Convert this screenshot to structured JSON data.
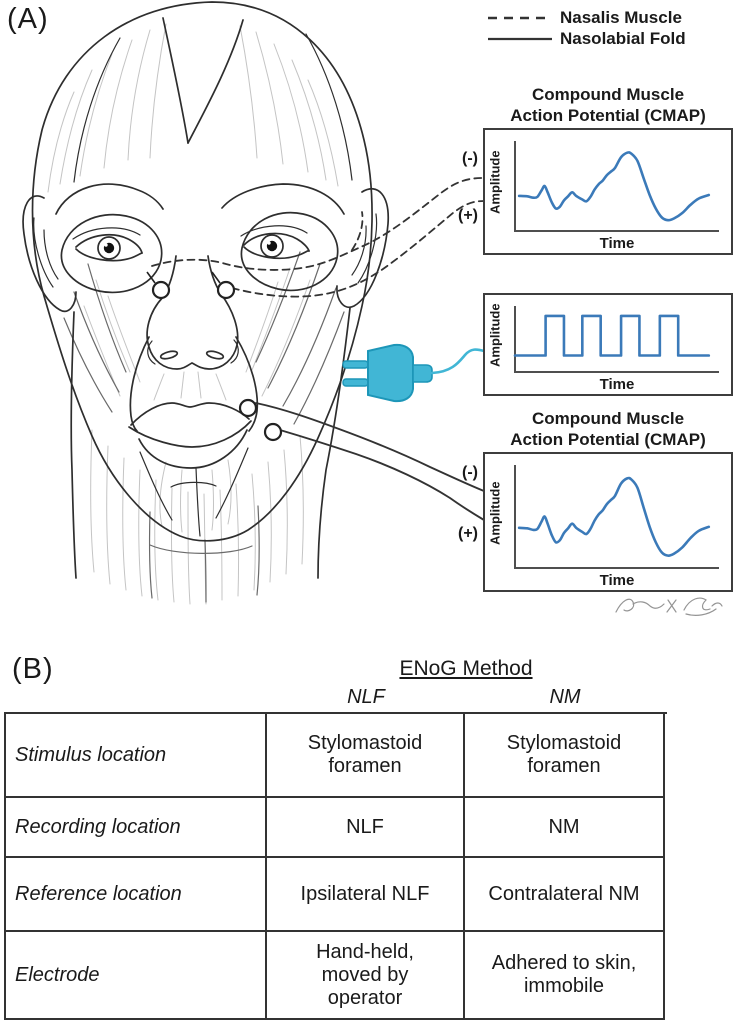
{
  "panel_a": {
    "label": "(A)",
    "legend": {
      "items": [
        {
          "line_style": "dashed",
          "label": "Nasalis Muscle"
        },
        {
          "line_style": "solid",
          "label": "Nasolabial Fold"
        }
      ]
    },
    "leads": {
      "nasalis_to_cmap": {
        "neg": "(-)",
        "pos": "(+)"
      },
      "nasolabial_to_cmap": {
        "neg": "(-)",
        "pos": "(+)"
      }
    }
  },
  "panel_b": {
    "label": "(B)",
    "table": {
      "title": "ENoG Method",
      "columns": [
        "NLF",
        "NM"
      ],
      "rows": [
        {
          "label": "Stimulus location",
          "nlf": "Stylomastoid\nforamen",
          "nm": "Stylomastoid\nforamen"
        },
        {
          "label": "Recording location",
          "nlf": "NLF",
          "nm": "NM"
        },
        {
          "label": "Reference location",
          "nlf": "Ipsilateral NLF",
          "nm": "Contralateral NM"
        },
        {
          "label": "Electrode",
          "nlf": "Hand-held,\nmoved by\noperator",
          "nm": "Adhered to skin,\nimmobile"
        }
      ]
    }
  },
  "chart_data": [
    {
      "type": "line",
      "id": "cmap_top",
      "smooth": true,
      "title": "Compound Muscle\nAction Potential (CMAP)",
      "xlabel": "Time",
      "ylabel": "Amplitude",
      "axis_ticks": "none",
      "grid": false,
      "color": "#3b7ab9",
      "points": [
        [
          2,
          61
        ],
        [
          6,
          61.5
        ],
        [
          9,
          63
        ],
        [
          11,
          62
        ],
        [
          13,
          55
        ],
        [
          14.5,
          50
        ],
        [
          16,
          57
        ],
        [
          18,
          68
        ],
        [
          20,
          75
        ],
        [
          22,
          73
        ],
        [
          24,
          66
        ],
        [
          26,
          61.5
        ],
        [
          28,
          57
        ],
        [
          30,
          61
        ],
        [
          33,
          65
        ],
        [
          35,
          67
        ],
        [
          37,
          62
        ],
        [
          39,
          54
        ],
        [
          41,
          48
        ],
        [
          43,
          44
        ],
        [
          45,
          38
        ],
        [
          47,
          34
        ],
        [
          49,
          30
        ],
        [
          52,
          18
        ],
        [
          55,
          13
        ],
        [
          57,
          14
        ],
        [
          60,
          22
        ],
        [
          63,
          41
        ],
        [
          66,
          60
        ],
        [
          69,
          75
        ],
        [
          72,
          85
        ],
        [
          75,
          88
        ],
        [
          78,
          86
        ],
        [
          82,
          80
        ],
        [
          86,
          71
        ],
        [
          90,
          64
        ],
        [
          95,
          60
        ]
      ]
    },
    {
      "type": "line",
      "id": "stimulus_train",
      "smooth": false,
      "title": "",
      "xlabel": "Time",
      "ylabel": "Amplitude",
      "axis_ticks": "none",
      "grid": false,
      "color": "#3b7ab9",
      "points": [
        [
          0,
          75
        ],
        [
          15,
          75
        ],
        [
          15,
          15
        ],
        [
          24,
          15
        ],
        [
          24,
          75
        ],
        [
          33,
          75
        ],
        [
          33,
          15
        ],
        [
          42,
          15
        ],
        [
          42,
          75
        ],
        [
          52,
          75
        ],
        [
          52,
          15
        ],
        [
          61,
          15
        ],
        [
          61,
          75
        ],
        [
          71,
          75
        ],
        [
          71,
          15
        ],
        [
          80,
          15
        ],
        [
          80,
          75
        ],
        [
          95,
          75
        ]
      ]
    },
    {
      "type": "line",
      "id": "cmap_bottom",
      "smooth": true,
      "title": "Compound Muscle\nAction Potential (CMAP)",
      "xlabel": "Time",
      "ylabel": "Amplitude",
      "axis_ticks": "none",
      "grid": false,
      "color": "#3b7ab9",
      "points": [
        [
          2,
          61
        ],
        [
          6,
          61.5
        ],
        [
          9,
          63
        ],
        [
          11,
          62
        ],
        [
          13,
          55
        ],
        [
          14.5,
          50
        ],
        [
          16,
          57
        ],
        [
          18,
          68
        ],
        [
          20,
          75
        ],
        [
          22,
          73
        ],
        [
          24,
          66
        ],
        [
          26,
          61.5
        ],
        [
          28,
          57
        ],
        [
          30,
          61
        ],
        [
          33,
          65
        ],
        [
          35,
          67
        ],
        [
          37,
          62
        ],
        [
          39,
          54
        ],
        [
          41,
          48
        ],
        [
          43,
          44
        ],
        [
          45,
          38
        ],
        [
          47,
          34
        ],
        [
          49,
          30
        ],
        [
          52,
          18
        ],
        [
          55,
          13
        ],
        [
          57,
          14
        ],
        [
          60,
          22
        ],
        [
          63,
          41
        ],
        [
          66,
          60
        ],
        [
          69,
          75
        ],
        [
          72,
          85
        ],
        [
          75,
          88
        ],
        [
          78,
          86
        ],
        [
          82,
          80
        ],
        [
          86,
          71
        ],
        [
          90,
          64
        ],
        [
          95,
          60
        ]
      ]
    }
  ],
  "colors": {
    "waveform_blue": "#3b7ab9",
    "stimulator_cyan": "#41b6d5",
    "stimulator_outline": "#1d96b8",
    "line_art": "#2e2e2e",
    "muscle_fiber": "#c4c4c4"
  }
}
